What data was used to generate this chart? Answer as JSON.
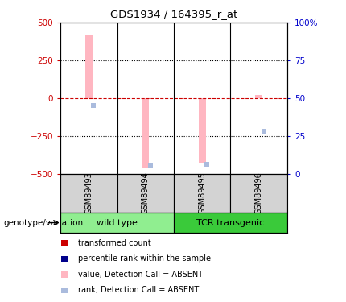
{
  "title": "GDS1934 / 164395_r_at",
  "samples": [
    "GSM89493",
    "GSM89494",
    "GSM89495",
    "GSM89496"
  ],
  "ylim": [
    -500,
    500
  ],
  "yticks_left": [
    -500,
    -250,
    0,
    250,
    500
  ],
  "yticks_right_pos": [
    -500,
    -250,
    0,
    250,
    500
  ],
  "yticks_right_labels": [
    "0",
    "25",
    "50",
    "75",
    "100%"
  ],
  "bar_values": [
    420,
    -460,
    -430,
    20
  ],
  "rank_values": [
    -50,
    -450,
    -440,
    -220
  ],
  "bar_color_absent": "#FFB6C1",
  "rank_color_absent": "#AABBDD",
  "hline_color": "#CC0000",
  "label_color_left": "#CC0000",
  "label_color_right": "#0000CC",
  "bar_width": 0.12,
  "group_label": "genotype/variation",
  "wt_color": "#90EE90",
  "tcr_color": "#3ACA3A",
  "sample_box_color": "#D3D3D3",
  "legend_items": [
    {
      "label": "transformed count",
      "color": "#CC0000"
    },
    {
      "label": "percentile rank within the sample",
      "color": "#00008B"
    },
    {
      "label": "value, Detection Call = ABSENT",
      "color": "#FFB6C1"
    },
    {
      "label": "rank, Detection Call = ABSENT",
      "color": "#AABBDD"
    }
  ]
}
